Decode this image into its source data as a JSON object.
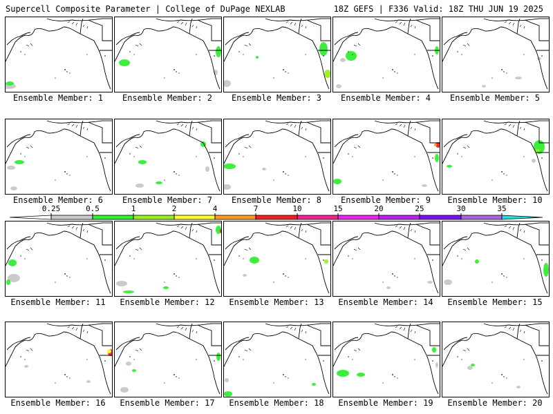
{
  "header": {
    "left_title": "Supercell Composite Parameter | College of DuPage NEXLAB",
    "right_title": "18Z GEFS | F336 Valid: 18Z THU JUN 19 2025"
  },
  "members": [
    {
      "label": "Ensemble Member: 1"
    },
    {
      "label": "Ensemble Member: 2"
    },
    {
      "label": "Ensemble Member: 3"
    },
    {
      "label": "Ensemble Member: 4"
    },
    {
      "label": "Ensemble Member: 5"
    },
    {
      "label": "Ensemble Member: 6"
    },
    {
      "label": "Ensemble Member: 7"
    },
    {
      "label": "Ensemble Member: 8"
    },
    {
      "label": "Ensemble Member: 9"
    },
    {
      "label": "Ensemble Member: 10"
    },
    {
      "label": "Ensemble Member: 11"
    },
    {
      "label": "Ensemble Member: 12"
    },
    {
      "label": "Ensemble Member: 13"
    },
    {
      "label": "Ensemble Member: 14"
    },
    {
      "label": "Ensemble Member: 15"
    },
    {
      "label": "Ensemble Member: 16"
    },
    {
      "label": "Ensemble Member: 17"
    },
    {
      "label": "Ensemble Member: 18"
    },
    {
      "label": "Ensemble Member: 19"
    },
    {
      "label": "Ensemble Member: 20"
    }
  ],
  "colorbar": {
    "labels": [
      "0.25",
      "0.5",
      "1",
      "2",
      "4",
      "7",
      "10",
      "15",
      "20",
      "25",
      "30",
      "35"
    ],
    "colors": [
      "#ffffff",
      "#c8c8c8",
      "#33ee33",
      "#99ee22",
      "#ffff22",
      "#ff9922",
      "#ee2222",
      "#ee2288",
      "#ee22ee",
      "#bb22ee",
      "#7711ee",
      "#aa66dd",
      "#22dddd"
    ]
  }
}
